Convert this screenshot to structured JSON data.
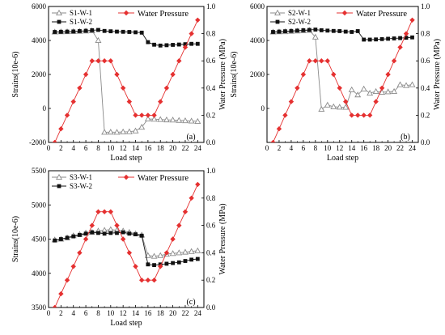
{
  "chart_data": [
    {
      "type": "line",
      "panel_label": "(a)",
      "xlabel": "Load step",
      "ylabel": "Strains(10e-6)",
      "y2label": "Water Pressure (MPa)",
      "xlim": [
        0,
        25
      ],
      "ylim": [
        -2000,
        6000
      ],
      "y2lim": [
        0,
        1.0
      ],
      "xticks": [
        0,
        2,
        4,
        6,
        8,
        10,
        12,
        14,
        16,
        18,
        20,
        22,
        24
      ],
      "yticks": [
        -2000,
        0,
        2000,
        4000,
        6000
      ],
      "y2ticks": [
        0.0,
        0.2,
        0.4,
        0.6,
        0.8,
        1.0
      ],
      "legend": {
        "left_placement": "top-left",
        "right_placement": "top-right"
      },
      "series": [
        {
          "name": "S1-W-1",
          "axis": "left",
          "color": "#8a8a8a",
          "marker": "open-triangle",
          "x": [
            1,
            2,
            3,
            4,
            5,
            6,
            7,
            8,
            9,
            10,
            11,
            12,
            13,
            14,
            15,
            16,
            17,
            18,
            19,
            20,
            21,
            22,
            23,
            24
          ],
          "values": [
            4500,
            4510,
            4520,
            4530,
            4540,
            4560,
            4580,
            4000,
            -1400,
            -1390,
            -1400,
            -1380,
            -1370,
            -1320,
            -1100,
            -620,
            -630,
            -650,
            -670,
            -680,
            -700,
            -720,
            -740,
            -760
          ]
        },
        {
          "name": "S1-W-2",
          "axis": "left",
          "color": "#111111",
          "marker": "filled-square",
          "x": [
            1,
            2,
            3,
            4,
            5,
            6,
            7,
            8,
            9,
            10,
            11,
            12,
            13,
            14,
            15,
            16,
            17,
            18,
            19,
            20,
            21,
            22,
            23,
            24
          ],
          "values": [
            4500,
            4510,
            4520,
            4530,
            4550,
            4570,
            4600,
            4620,
            4560,
            4540,
            4520,
            4510,
            4500,
            4480,
            4460,
            3900,
            3750,
            3700,
            3720,
            3740,
            3760,
            3780,
            3800,
            3800
          ]
        },
        {
          "name": "Water Pressure",
          "axis": "right",
          "color": "#e53030",
          "marker": "filled-diamond",
          "x": [
            1,
            2,
            3,
            4,
            5,
            6,
            7,
            8,
            9,
            10,
            11,
            12,
            13,
            14,
            15,
            16,
            17,
            18,
            19,
            20,
            21,
            22,
            23,
            24
          ],
          "values": [
            0.0,
            0.1,
            0.2,
            0.3,
            0.4,
            0.5,
            0.6,
            0.6,
            0.6,
            0.6,
            0.5,
            0.4,
            0.3,
            0.2,
            0.2,
            0.2,
            0.2,
            0.3,
            0.4,
            0.5,
            0.6,
            0.7,
            0.8,
            0.9
          ]
        }
      ]
    },
    {
      "type": "line",
      "panel_label": "(b)",
      "xlabel": "Load step",
      "ylabel": "Strains(10e-6)",
      "y2label": "Water Pressure (MPa)",
      "xlim": [
        0,
        25
      ],
      "ylim": [
        -2000,
        6000
      ],
      "y2lim": [
        0,
        1.0
      ],
      "xticks": [
        0,
        2,
        4,
        6,
        8,
        10,
        12,
        14,
        16,
        18,
        20,
        22,
        24
      ],
      "yticks": [
        0,
        2000,
        4000,
        6000
      ],
      "y2ticks": [
        0.0,
        0.2,
        0.4,
        0.6,
        0.8,
        1.0
      ],
      "legend": {
        "left_placement": "top-left",
        "right_placement": "top-right"
      },
      "series": [
        {
          "name": "S2-W-1",
          "axis": "left",
          "color": "#8a8a8a",
          "marker": "open-triangle",
          "x": [
            1,
            2,
            3,
            4,
            5,
            6,
            7,
            8,
            9,
            10,
            11,
            12,
            13,
            14,
            15,
            16,
            17,
            18,
            19,
            20,
            21,
            22,
            23,
            24
          ],
          "values": [
            4500,
            4510,
            4520,
            4540,
            4560,
            4580,
            4600,
            4200,
            -50,
            200,
            100,
            80,
            70,
            1100,
            800,
            1150,
            900,
            1000,
            950,
            980,
            1000,
            1400,
            1350,
            1400
          ]
        },
        {
          "name": "S2-W-2",
          "axis": "left",
          "color": "#111111",
          "marker": "filled-square",
          "x": [
            1,
            2,
            3,
            4,
            5,
            6,
            7,
            8,
            9,
            10,
            11,
            12,
            13,
            14,
            15,
            16,
            17,
            18,
            19,
            20,
            21,
            22,
            23,
            24
          ],
          "values": [
            4500,
            4520,
            4540,
            4560,
            4580,
            4600,
            4620,
            4640,
            4600,
            4580,
            4560,
            4550,
            4520,
            4500,
            4550,
            4050,
            4050,
            4060,
            4080,
            4100,
            4120,
            4140,
            4160,
            4180
          ]
        },
        {
          "name": "Water Pressure",
          "axis": "right",
          "color": "#e53030",
          "marker": "filled-diamond",
          "x": [
            1,
            2,
            3,
            4,
            5,
            6,
            7,
            8,
            9,
            10,
            11,
            12,
            13,
            14,
            15,
            16,
            17,
            18,
            19,
            20,
            21,
            22,
            23,
            24
          ],
          "values": [
            0.0,
            0.1,
            0.2,
            0.3,
            0.4,
            0.5,
            0.6,
            0.6,
            0.6,
            0.6,
            0.5,
            0.4,
            0.3,
            0.2,
            0.2,
            0.2,
            0.2,
            0.3,
            0.4,
            0.5,
            0.6,
            0.7,
            0.8,
            0.9
          ]
        }
      ]
    },
    {
      "type": "line",
      "panel_label": "(c)",
      "xlabel": "Load step",
      "ylabel": "Strains(10e-6)",
      "y2label": "Water Pressure (MPa)",
      "xlim": [
        0,
        25
      ],
      "ylim": [
        3500,
        5500
      ],
      "y2lim": [
        0,
        1.0
      ],
      "xticks": [
        0,
        2,
        4,
        6,
        8,
        10,
        12,
        14,
        16,
        18,
        20,
        22,
        24
      ],
      "yticks": [
        3500,
        4000,
        4500,
        5000,
        5500
      ],
      "y2ticks": [
        0.0,
        0.2,
        0.4,
        0.6,
        0.8,
        1.0
      ],
      "legend": {
        "left_placement": "top-left",
        "right_placement": "top-right"
      },
      "series": [
        {
          "name": "S3-W-1",
          "axis": "left",
          "color": "#8a8a8a",
          "marker": "open-triangle",
          "x": [
            1,
            2,
            3,
            4,
            5,
            6,
            7,
            8,
            9,
            10,
            11,
            12,
            13,
            14,
            15,
            16,
            17,
            18,
            19,
            20,
            21,
            22,
            23,
            24
          ],
          "values": [
            4490,
            4500,
            4520,
            4550,
            4570,
            4590,
            4600,
            4620,
            4630,
            4640,
            4630,
            4620,
            4600,
            4580,
            4560,
            4260,
            4250,
            4260,
            4280,
            4290,
            4300,
            4310,
            4320,
            4330
          ]
        },
        {
          "name": "S3-W-2",
          "axis": "left",
          "color": "#111111",
          "marker": "filled-square",
          "x": [
            1,
            2,
            3,
            4,
            5,
            6,
            7,
            8,
            9,
            10,
            11,
            12,
            13,
            14,
            15,
            16,
            17,
            18,
            19,
            20,
            21,
            22,
            23,
            24
          ],
          "values": [
            4480,
            4500,
            4520,
            4540,
            4560,
            4580,
            4600,
            4590,
            4580,
            4590,
            4590,
            4600,
            4580,
            4570,
            4550,
            4130,
            4120,
            4130,
            4140,
            4150,
            4160,
            4180,
            4200,
            4210
          ]
        },
        {
          "name": "Water Pressure",
          "axis": "right",
          "color": "#e53030",
          "marker": "filled-diamond",
          "x": [
            1,
            2,
            3,
            4,
            5,
            6,
            7,
            8,
            9,
            10,
            11,
            12,
            13,
            14,
            15,
            16,
            17,
            18,
            19,
            20,
            21,
            22,
            23,
            24
          ],
          "values": [
            0.0,
            0.1,
            0.2,
            0.3,
            0.4,
            0.5,
            0.6,
            0.7,
            0.7,
            0.7,
            0.6,
            0.5,
            0.4,
            0.3,
            0.2,
            0.2,
            0.2,
            0.3,
            0.4,
            0.5,
            0.6,
            0.7,
            0.8,
            0.9
          ]
        }
      ]
    }
  ]
}
